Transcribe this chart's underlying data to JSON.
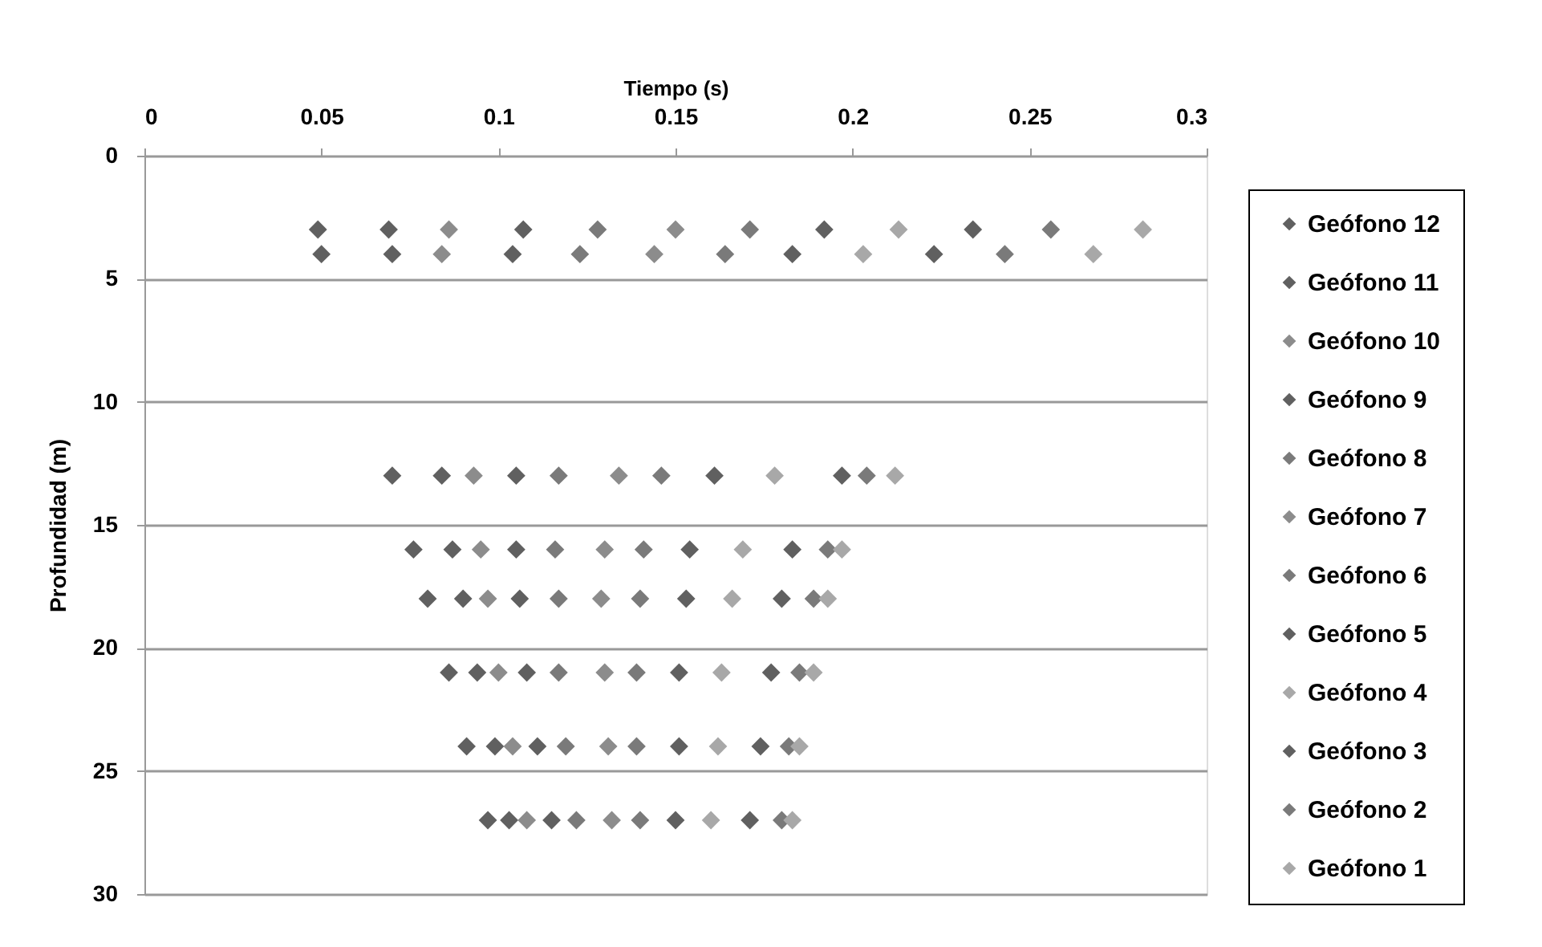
{
  "chart_data": {
    "type": "scatter",
    "xlabel": "Tiempo (s)",
    "ylabel": "Profundidad (m)",
    "xlim": [
      0,
      0.3
    ],
    "xticks": [
      0,
      0.05,
      0.1,
      0.15,
      0.2,
      0.25,
      0.3
    ],
    "ylim": [
      30,
      0
    ],
    "yticks": [
      0,
      5,
      10,
      15,
      20,
      25,
      30
    ],
    "grid": "y",
    "legend": "right",
    "marker": "diamond",
    "series": [
      {
        "name": "Geófono 12",
        "color": "#606060",
        "x": [
          0.049,
          0.05,
          0.07,
          0.076,
          0.08,
          0.086,
          0.091,
          0.097
        ],
        "values": [
          3,
          4,
          13,
          16,
          18,
          21,
          24,
          27
        ]
      },
      {
        "name": "Geófono 11",
        "color": "#606060",
        "x": [
          0.069,
          0.07,
          0.084,
          0.087,
          0.09,
          0.094,
          0.099,
          0.103
        ],
        "values": [
          3,
          4,
          13,
          16,
          18,
          21,
          24,
          27
        ]
      },
      {
        "name": "Geófono 10",
        "color": "#8c8c8c",
        "x": [
          0.086,
          0.084,
          0.093,
          0.095,
          0.097,
          0.1,
          0.104,
          0.108
        ],
        "values": [
          3,
          4,
          13,
          16,
          18,
          21,
          24,
          27
        ]
      },
      {
        "name": "Geófono 9",
        "color": "#606060",
        "x": [
          0.107,
          0.104,
          0.105,
          0.105,
          0.106,
          0.108,
          0.111,
          0.115
        ],
        "values": [
          3,
          4,
          13,
          16,
          18,
          21,
          24,
          27
        ]
      },
      {
        "name": "Geófono 8",
        "color": "#7a7a7a",
        "x": [
          0.128,
          0.123,
          0.117,
          0.116,
          0.117,
          0.117,
          0.119,
          0.122
        ],
        "values": [
          3,
          4,
          13,
          16,
          18,
          21,
          24,
          27
        ]
      },
      {
        "name": "Geófono 7",
        "color": "#8c8c8c",
        "x": [
          0.15,
          0.144,
          0.134,
          0.13,
          0.129,
          0.13,
          0.131,
          0.132
        ],
        "values": [
          3,
          4,
          13,
          16,
          18,
          21,
          24,
          27
        ]
      },
      {
        "name": "Geófono 6",
        "color": "#7a7a7a",
        "x": [
          0.171,
          0.164,
          0.146,
          0.141,
          0.14,
          0.139,
          0.139,
          0.14
        ],
        "values": [
          3,
          4,
          13,
          16,
          18,
          21,
          24,
          27
        ]
      },
      {
        "name": "Geófono 5",
        "color": "#606060",
        "x": [
          0.192,
          0.183,
          0.161,
          0.154,
          0.153,
          0.151,
          0.151,
          0.15
        ],
        "values": [
          3,
          4,
          13,
          16,
          18,
          21,
          24,
          27
        ]
      },
      {
        "name": "Geófono 4",
        "color": "#a8a8a8",
        "x": [
          0.213,
          0.203,
          0.178,
          0.169,
          0.166,
          0.163,
          0.162,
          0.16
        ],
        "values": [
          3,
          4,
          13,
          16,
          18,
          21,
          24,
          27
        ]
      },
      {
        "name": "Geófono 3",
        "color": "#606060",
        "x": [
          0.234,
          0.223,
          0.197,
          0.183,
          0.18,
          0.177,
          0.174,
          0.171
        ],
        "values": [
          3,
          4,
          13,
          16,
          18,
          21,
          24,
          27
        ]
      },
      {
        "name": "Geófono 2",
        "color": "#7a7a7a",
        "x": [
          0.256,
          0.243,
          0.204,
          0.193,
          0.189,
          0.185,
          0.182,
          0.18
        ],
        "values": [
          3,
          4,
          13,
          16,
          18,
          21,
          24,
          27
        ]
      },
      {
        "name": "Geófono 1",
        "color": "#a8a8a8",
        "x": [
          0.282,
          0.268,
          0.212,
          0.197,
          0.193,
          0.189,
          0.185,
          0.183
        ],
        "values": [
          3,
          4,
          13,
          16,
          18,
          21,
          24,
          27
        ]
      }
    ]
  }
}
